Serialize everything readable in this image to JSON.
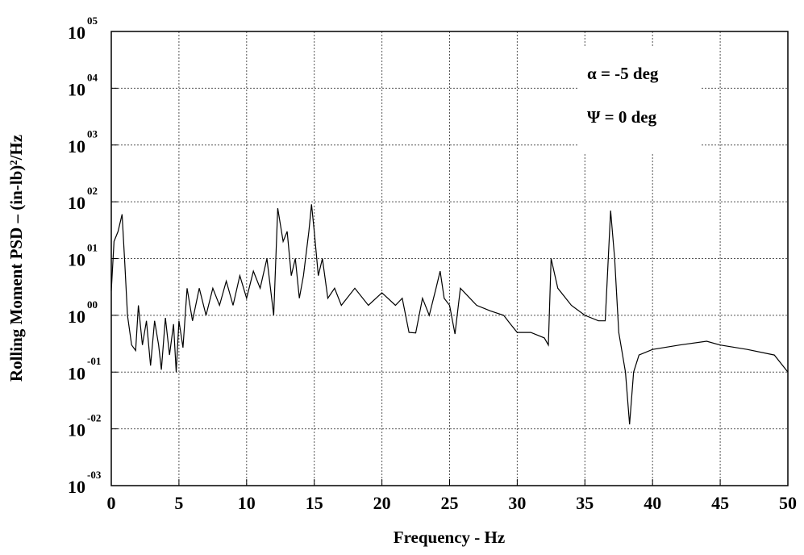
{
  "chart_data": {
    "type": "line",
    "xlabel": "Frequency - Hz",
    "ylabel": "Rolling Moment PSD – (in-lb)²/Hz",
    "annotations": [
      "α = -5 deg",
      "Ψ = 0 deg"
    ],
    "log_y": true,
    "grid": true,
    "xlim": [
      0,
      50
    ],
    "xticks": [
      0,
      5,
      10,
      15,
      20,
      25,
      30,
      35,
      40,
      45,
      50
    ],
    "ylim": [
      0.001,
      100000
    ],
    "yticks": [
      {
        "value": 0.001,
        "label": "10",
        "sup": "-03"
      },
      {
        "value": 0.01,
        "label": "10",
        "sup": "-02"
      },
      {
        "value": 0.1,
        "label": "10",
        "sup": "-01"
      },
      {
        "value": 1,
        "label": "10",
        "sup": "00"
      },
      {
        "value": 10,
        "label": "10",
        "sup": "01"
      },
      {
        "value": 100,
        "label": "10",
        "sup": "02"
      },
      {
        "value": 1000,
        "label": "10",
        "sup": "03"
      },
      {
        "value": 10000,
        "label": "10",
        "sup": "04"
      },
      {
        "value": 100000,
        "label": "10",
        "sup": "05"
      }
    ],
    "x": [
      0,
      0.2,
      0.5,
      0.8,
      1.0,
      1.2,
      1.5,
      1.8,
      2.0,
      2.3,
      2.6,
      2.9,
      3.2,
      3.5,
      3.7,
      4.0,
      4.3,
      4.6,
      4.8,
      5.0,
      5.3,
      5.6,
      6.0,
      6.5,
      7.0,
      7.5,
      8.0,
      8.5,
      9.0,
      9.5,
      10.0,
      10.5,
      11.0,
      11.5,
      12.0,
      12.3,
      12.7,
      13.0,
      13.3,
      13.6,
      13.9,
      14.2,
      14.6,
      14.8,
      15.0,
      15.3,
      15.6,
      16.0,
      16.5,
      17.0,
      18.0,
      19.0,
      20.0,
      21.0,
      21.5,
      22.0,
      22.5,
      23.0,
      23.5,
      24.0,
      24.3,
      24.6,
      25.0,
      25.4,
      25.8,
      26.5,
      27.0,
      28.0,
      29.0,
      29.5,
      30.0,
      31.0,
      32.0,
      32.3,
      32.5,
      33.0,
      34.0,
      35.0,
      36.0,
      36.5,
      36.9,
      37.2,
      37.5,
      38.0,
      38.3,
      38.6,
      39.0,
      40.0,
      42.0,
      44.0,
      45.0,
      47.0,
      49.0,
      50.0
    ],
    "series": [
      {
        "name": "PSD",
        "color": "#000000",
        "values": [
          2.7,
          20,
          30,
          60,
          8,
          1,
          0.3,
          0.24,
          1.5,
          0.3,
          0.8,
          0.13,
          0.8,
          0.3,
          0.11,
          0.9,
          0.2,
          0.7,
          0.1,
          0.8,
          0.27,
          3,
          0.8,
          3,
          1,
          3,
          1.5,
          4,
          1.5,
          5,
          2,
          6,
          3,
          10,
          1,
          77,
          20,
          30,
          5,
          10,
          2,
          5,
          30,
          90,
          30,
          5,
          10,
          2,
          3,
          1.5,
          3,
          1.5,
          2.5,
          1.5,
          2,
          0.5,
          0.49,
          2,
          1,
          3,
          6,
          2,
          1.5,
          0.47,
          3,
          2,
          1.5,
          1.2,
          1,
          0.7,
          0.5,
          0.5,
          0.4,
          0.3,
          10,
          3,
          1.5,
          1,
          0.8,
          0.8,
          70,
          10,
          0.5,
          0.1,
          0.012,
          0.1,
          0.2,
          0.25,
          0.3,
          0.35,
          0.3,
          0.25,
          0.2,
          0.1
        ]
      }
    ]
  }
}
